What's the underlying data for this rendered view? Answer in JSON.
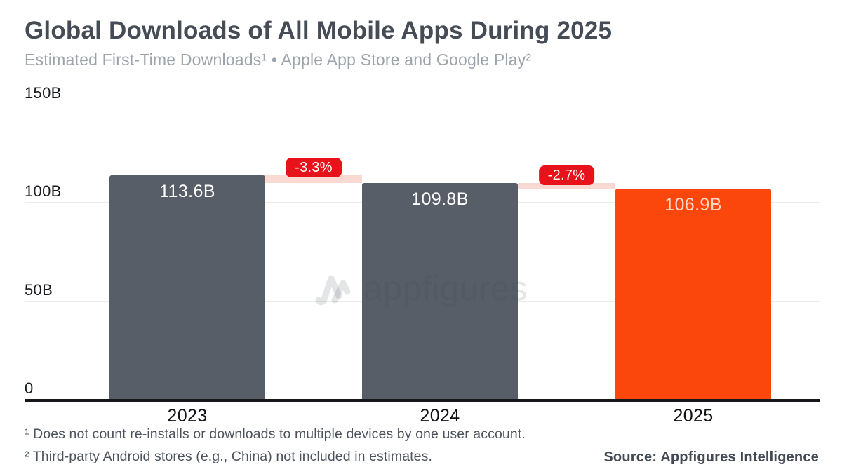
{
  "header": {
    "title": "Global Downloads of All Mobile Apps During 2025",
    "subtitle": "Estimated First-Time Downloads¹ • Apple App Store and Google Play²"
  },
  "watermark": {
    "brand": "appfigures"
  },
  "chart_data": {
    "type": "bar",
    "title": "Global Downloads of All Mobile Apps During 2025",
    "subtitle": "Estimated First-Time Downloads • Apple App Store and Google Play",
    "categories": [
      "2023",
      "2024",
      "2025"
    ],
    "values": [
      113.6,
      109.8,
      106.9
    ],
    "value_labels": [
      "113.6B",
      "109.8B",
      "106.9B"
    ],
    "unit": "billions of first-time downloads",
    "ylim": [
      0,
      150
    ],
    "yticks": [
      {
        "value": 150,
        "label": "150B"
      },
      {
        "value": 100,
        "label": "100B"
      },
      {
        "value": 50,
        "label": "50B"
      },
      {
        "value": 0,
        "label": "0"
      }
    ],
    "grid": "horizontal",
    "legend": "none",
    "bar_colors": [
      "#575E67",
      "#575E67",
      "#FB470B"
    ],
    "value_label_colors": [
      "#FFFFFF",
      "#FFFFFF",
      "#FFD8CC"
    ],
    "changes": [
      {
        "from": "2023",
        "to": "2024",
        "value": -3.3,
        "label": "-3.3%"
      },
      {
        "from": "2024",
        "to": "2025",
        "value": -2.7,
        "label": "-2.7%"
      }
    ],
    "change_badge_color": "#E8121A",
    "change_band_color": "#FBD9D3"
  },
  "footnotes": [
    "¹ Does not count re-installs or downloads to multiple devices by one user account.",
    "² Third-party Android stores (e.g., China) not included in estimates."
  ],
  "source": "Source: Appfigures Intelligence"
}
